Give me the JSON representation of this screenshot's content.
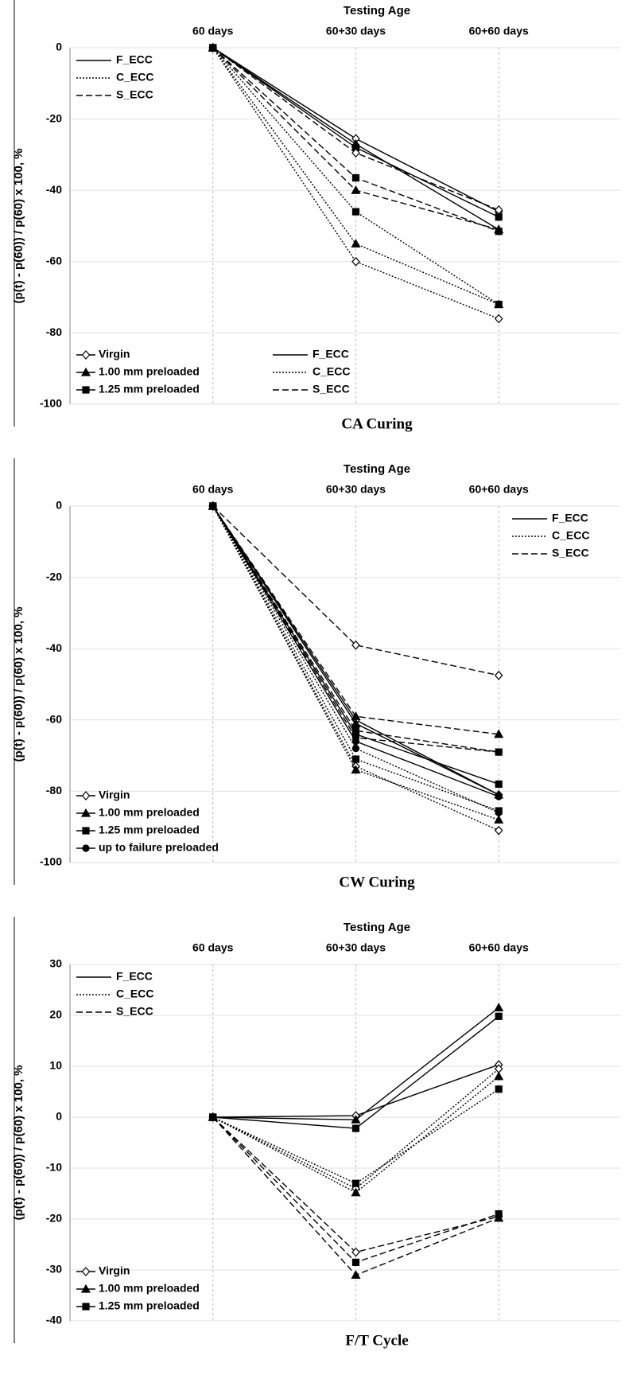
{
  "chart_data": [
    {
      "type": "line",
      "title": "Testing Age",
      "caption": "CA Curing",
      "ylabel": "(p(t) - p(60)) / p(60) x 100, %",
      "categories": [
        "60 days",
        "60+30 days",
        "60+60 days"
      ],
      "ylim": [
        -100,
        0
      ],
      "yticks": [
        -100,
        -80,
        -60,
        -40,
        -20,
        0
      ],
      "grid": true,
      "series": [
        {
          "dash": "solid",
          "marker": "diamond",
          "color": "#000",
          "values": [
            0,
            -25.5,
            -46
          ]
        },
        {
          "dash": "solid",
          "marker": "triangle",
          "color": "#000",
          "values": [
            0,
            -27,
            -51
          ]
        },
        {
          "dash": "solid",
          "marker": "square",
          "color": "#000",
          "values": [
            0,
            -28,
            -47.5
          ]
        },
        {
          "dash": "dotted",
          "marker": "diamond",
          "color": "#000",
          "values": [
            0,
            -60,
            -76
          ]
        },
        {
          "dash": "dotted",
          "marker": "triangle",
          "color": "#000",
          "values": [
            0,
            -55,
            -72
          ]
        },
        {
          "dash": "dotted",
          "marker": "square",
          "color": "#000",
          "values": [
            0,
            -46,
            -72
          ]
        },
        {
          "dash": "dashed",
          "marker": "diamond",
          "color": "#000",
          "values": [
            0,
            -29.5,
            -45.5
          ]
        },
        {
          "dash": "dashed",
          "marker": "triangle",
          "color": "#000",
          "values": [
            0,
            -40,
            -51
          ]
        },
        {
          "dash": "dashed",
          "marker": "square",
          "color": "#000",
          "values": [
            0,
            -36.5,
            -51.5
          ]
        }
      ],
      "line_legend": [
        {
          "label": "F_ECC",
          "dash": "solid"
        },
        {
          "label": "C_ECC",
          "dash": "dotted"
        },
        {
          "label": "S_ECC",
          "dash": "dashed"
        }
      ],
      "line_legend_positions": [
        "upper left",
        "lower center"
      ],
      "marker_legend": [
        {
          "label": "Virgin",
          "marker": "diamond"
        },
        {
          "label": "1.00 mm preloaded",
          "marker": "triangle"
        },
        {
          "label": "1.25 mm preloaded",
          "marker": "square"
        }
      ],
      "marker_legend_position": "lower left"
    },
    {
      "type": "line",
      "title": "Testing Age",
      "caption": "CW Curing",
      "ylabel": "(p(t) - p(60)) / p(60) x 100, %",
      "categories": [
        "60 days",
        "60+30 days",
        "60+60 days"
      ],
      "ylim": [
        -100,
        0
      ],
      "yticks": [
        -100,
        -80,
        -60,
        -40,
        -20,
        0
      ],
      "grid": true,
      "series": [
        {
          "dash": "solid",
          "marker": "diamond",
          "color": "#000",
          "values": [
            0,
            -60,
            -81
          ]
        },
        {
          "dash": "solid",
          "marker": "triangle",
          "color": "#000",
          "values": [
            0,
            -61,
            -81
          ]
        },
        {
          "dash": "solid",
          "marker": "square",
          "color": "#000",
          "values": [
            0,
            -64,
            -78
          ]
        },
        {
          "dash": "solid",
          "marker": "circle",
          "color": "#000",
          "values": [
            0,
            -66,
            -81.5
          ]
        },
        {
          "dash": "dotted",
          "marker": "diamond",
          "color": "#000",
          "values": [
            0,
            -73,
            -91
          ]
        },
        {
          "dash": "dotted",
          "marker": "triangle",
          "color": "#000",
          "values": [
            0,
            -74,
            -88
          ]
        },
        {
          "dash": "dotted",
          "marker": "square",
          "color": "#000",
          "values": [
            0,
            -71,
            -85.5
          ]
        },
        {
          "dash": "dotted",
          "marker": "circle",
          "color": "#000",
          "values": [
            0,
            -68,
            -86
          ]
        },
        {
          "dash": "dashed",
          "marker": "diamond",
          "color": "#000",
          "values": [
            0,
            -39,
            -47.5
          ]
        },
        {
          "dash": "dashed",
          "marker": "triangle",
          "color": "#000",
          "values": [
            0,
            -59,
            -64
          ]
        },
        {
          "dash": "dashed",
          "marker": "square",
          "color": "#000",
          "values": [
            0,
            -63,
            -69
          ]
        },
        {
          "dash": "dashed",
          "marker": "circle",
          "color": "#000",
          "values": [
            0,
            -65,
            -69
          ]
        }
      ],
      "line_legend": [
        {
          "label": "F_ECC",
          "dash": "solid"
        },
        {
          "label": "C_ECC",
          "dash": "dotted"
        },
        {
          "label": "S_ECC",
          "dash": "dashed"
        }
      ],
      "line_legend_positions": [
        "upper right"
      ],
      "marker_legend": [
        {
          "label": "Virgin",
          "marker": "diamond"
        },
        {
          "label": "1.00 mm preloaded",
          "marker": "triangle"
        },
        {
          "label": "1.25 mm preloaded",
          "marker": "square"
        },
        {
          "label": "up to failure preloaded",
          "marker": "circle"
        }
      ],
      "marker_legend_position": "lower left"
    },
    {
      "type": "line",
      "title": "Testing Age",
      "caption": "F/T Cycle",
      "ylabel": "(p(t) - p(60)) / p(60) x 100, %",
      "categories": [
        "60 days",
        "60+30 days",
        "60+60 days"
      ],
      "ylim": [
        -40,
        30
      ],
      "yticks": [
        -40,
        -30,
        -20,
        -10,
        0,
        10,
        20,
        30
      ],
      "grid": true,
      "series": [
        {
          "dash": "solid",
          "marker": "diamond",
          "color": "#000",
          "values": [
            0,
            0.3,
            10.3
          ]
        },
        {
          "dash": "solid",
          "marker": "triangle",
          "color": "#000",
          "values": [
            0,
            -0.5,
            21.5
          ]
        },
        {
          "dash": "solid",
          "marker": "square",
          "color": "#000",
          "values": [
            0,
            -2.2,
            19.8
          ]
        },
        {
          "dash": "dotted",
          "marker": "diamond",
          "color": "#000",
          "values": [
            0,
            -14,
            9.5
          ]
        },
        {
          "dash": "dotted",
          "marker": "triangle",
          "color": "#000",
          "values": [
            0,
            -14.8,
            8
          ]
        },
        {
          "dash": "dotted",
          "marker": "square",
          "color": "#000",
          "values": [
            0,
            -13,
            5.5
          ]
        },
        {
          "dash": "dashed",
          "marker": "diamond",
          "color": "#000",
          "values": [
            0,
            -26.5,
            -19.5
          ]
        },
        {
          "dash": "dashed",
          "marker": "triangle",
          "color": "#000",
          "values": [
            0,
            -31,
            -19.8
          ]
        },
        {
          "dash": "dashed",
          "marker": "square",
          "color": "#000",
          "values": [
            0,
            -28.5,
            -19
          ]
        }
      ],
      "line_legend": [
        {
          "label": "F_ECC",
          "dash": "solid"
        },
        {
          "label": "C_ECC",
          "dash": "dotted"
        },
        {
          "label": "S_ECC",
          "dash": "dashed"
        }
      ],
      "line_legend_positions": [
        "upper left"
      ],
      "marker_legend": [
        {
          "label": "Virgin",
          "marker": "diamond"
        },
        {
          "label": "1.00 mm preloaded",
          "marker": "triangle"
        },
        {
          "label": "1.25 mm preloaded",
          "marker": "square"
        }
      ],
      "marker_legend_position": "lower left"
    }
  ]
}
